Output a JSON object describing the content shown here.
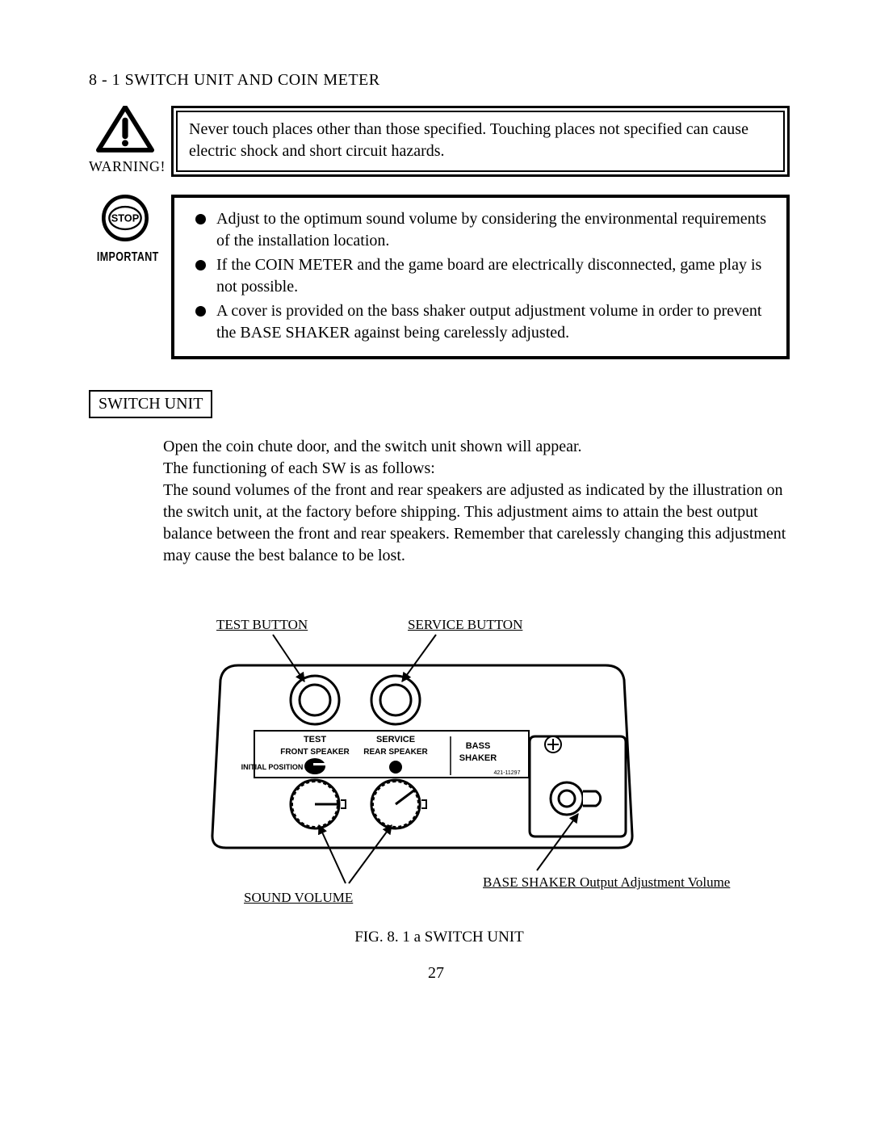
{
  "section_heading": "8 - 1  SWITCH UNIT AND COIN METER",
  "warning": {
    "icon_label": "WARNING!",
    "text": "Never touch places other than those specified.  Touching places not specified can cause electric shock and short circuit hazards."
  },
  "important": {
    "stop_text": "STOP",
    "icon_label": "IMPORTANT",
    "bullets": [
      "Adjust to the optimum sound volume by considering the environmental requirements of the installation location.",
      "If the COIN METER and the game board are electrically disconnected, game play is not possible.",
      "A cover is provided on the bass shaker output adjustment volume in order to prevent the BASE SHAKER against being carelessly adjusted."
    ]
  },
  "switch_unit_label": "SWITCH UNIT",
  "body_text": "Open the coin chute door, and the switch unit shown will appear.\nThe functioning of each SW is as follows:\nThe sound volumes of the front and rear speakers are adjusted as indicated by the illustration on the switch unit, at the factory before shipping. This adjustment aims to attain the best output balance between the front and rear speakers. Remember that carelessly changing this adjustment may cause the best balance to be lost.",
  "figure": {
    "callouts": {
      "test_button": "TEST BUTTON",
      "service_button": "SERVICE BUTTON",
      "sound_volume": "SOUND VOLUME",
      "base_shaker_vol": "BASE SHAKER Output Adjustment Volume"
    },
    "panel_labels": {
      "test": "TEST",
      "service": "SERVICE",
      "front_speaker": "FRONT SPEAKER",
      "rear_speaker": "REAR SPEAKER",
      "initial_position": "INITIAL POSITION",
      "bass": "BASS",
      "shaker": "SHAKER",
      "partno": "421-11297"
    },
    "caption": "FIG. 8. 1 a  SWITCH UNIT",
    "stroke": "#000000",
    "bg": "#ffffff"
  },
  "page_number": "27",
  "typography": {
    "body_fontsize_pt": 15,
    "callout_fontsize_pt": 13,
    "panel_label_fontsize_pt": 9
  },
  "colors": {
    "text": "#000000",
    "background": "#ffffff"
  }
}
